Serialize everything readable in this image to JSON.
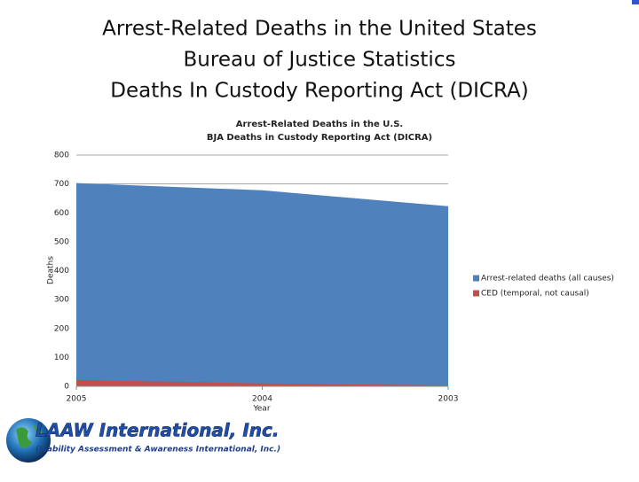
{
  "slide_title": [
    "Arrest-Related Deaths in the United States",
    "Bureau of Justice Statistics",
    "Deaths In Custody Reporting Act (DICRA)"
  ],
  "logo": {
    "name": "LAAW International, Inc.",
    "subtitle": "(Liability Assessment & Awareness International, Inc.)"
  },
  "chart_data": {
    "type": "area",
    "title": [
      "Arrest-Related Deaths in the U.S.",
      "BJA Deaths in Custody Reporting Act (DICRA)"
    ],
    "categories": [
      "2005",
      "2004",
      "2003"
    ],
    "x_label": "Year",
    "y_label": "Deaths",
    "series": [
      {
        "name": "Arrest-related deaths (all causes)",
        "color": "#4f81bd",
        "values": [
          703,
          678,
          623
        ]
      },
      {
        "name": "CED (temporal, not causal)",
        "color": "#c0504d",
        "values": [
          22,
          10,
          3
        ]
      }
    ],
    "ylim": [
      0,
      800
    ],
    "yticks": [
      0,
      100,
      200,
      300,
      400,
      500,
      600,
      700,
      800
    ],
    "grid": true,
    "legend": "right"
  }
}
